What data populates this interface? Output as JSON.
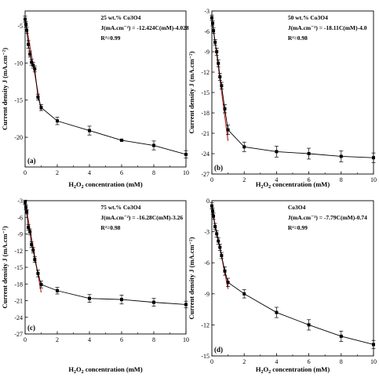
{
  "chart_data": [
    {
      "type": "scatter",
      "panel": "(a)",
      "ylabel": "Current density J (mA.cm⁻²)",
      "xlabel_parts": [
        "H",
        "2",
        "O",
        "2",
        " concentration (mM)"
      ],
      "xlim": [
        0,
        10
      ],
      "ylim": [
        -24,
        -3
      ],
      "xticks": [
        0,
        2,
        4,
        6,
        8,
        10
      ],
      "yticks": [
        -5,
        -10,
        -15,
        -20
      ],
      "annotations": [
        "25 wt.% Co3O4",
        "J(mA.cm⁻²) = -12.424C(mM)-4.028",
        "R²=0.99"
      ],
      "x": [
        0,
        0.05,
        0.1,
        0.2,
        0.3,
        0.4,
        0.5,
        0.6,
        0.8,
        1,
        2,
        4,
        6,
        8,
        10
      ],
      "y": [
        -4.1,
        -4.8,
        -5.6,
        -7.5,
        -8.8,
        -9.9,
        -10.3,
        -10.8,
        -14.6,
        -16,
        -17.8,
        -19.1,
        -20.4,
        -21.1,
        -22.3
      ],
      "yerr": [
        0.4,
        0.4,
        0.4,
        0.5,
        0.4,
        0.4,
        0.4,
        0.4,
        0.4,
        0.4,
        0.5,
        0.6,
        0.1,
        0.6,
        0.5
      ],
      "fit": {
        "slope": -12.424,
        "intercept": -4.028,
        "x_range": [
          0,
          1
        ]
      }
    },
    {
      "type": "scatter",
      "panel": "(b)",
      "ylabel": "Current density J (mA.cm⁻²)",
      "xlabel_parts": [
        "H",
        "2",
        "O",
        "2",
        " concentration (mM)"
      ],
      "xlim": [
        0,
        10
      ],
      "ylim": [
        -27,
        -3
      ],
      "xticks": [
        0,
        2,
        4,
        6,
        8,
        10
      ],
      "yticks": [
        -3,
        -6,
        -9,
        -12,
        -15,
        -18,
        -21,
        -24,
        -27
      ],
      "annotations": [
        "50 wt.% Co3O4",
        "J(mA.cm⁻²) = -18.11C(mM)-4.0",
        "R²=0.98"
      ],
      "x": [
        0,
        0.05,
        0.1,
        0.2,
        0.3,
        0.4,
        0.5,
        0.6,
        0.8,
        1,
        2,
        4,
        6,
        8,
        10
      ],
      "y": [
        -4,
        -4.8,
        -5.9,
        -7.6,
        -9.0,
        -10.7,
        -12.7,
        -14.0,
        -17.4,
        -20.5,
        -23.0,
        -23.7,
        -24.0,
        -24.4,
        -24.6
      ],
      "yerr": [
        0.4,
        0.4,
        0.4,
        0.4,
        0.5,
        0.5,
        0.5,
        0.5,
        0.6,
        0.7,
        0.7,
        0.8,
        0.8,
        0.8,
        0.7
      ],
      "fit": {
        "slope": -18.11,
        "intercept": -4.0,
        "x_range": [
          0,
          1
        ]
      }
    },
    {
      "type": "scatter",
      "panel": "(c)",
      "ylabel": "Current density J (mA.cm⁻²)",
      "xlabel_parts": [
        "H",
        "2",
        "O",
        "2",
        " concentration (mM)"
      ],
      "xlim": [
        0,
        10
      ],
      "ylim": [
        -27,
        -3
      ],
      "xticks": [
        0,
        2,
        4,
        6,
        8,
        10
      ],
      "yticks": [
        -3,
        -6,
        -9,
        -12,
        -15,
        -18,
        -21,
        -24,
        -27
      ],
      "annotations": [
        "75 wt.% Co3O4",
        "J(mA.cm⁻²) = -16.28C(mM)-3.26",
        "R²=0.98"
      ],
      "x": [
        0,
        0.05,
        0.1,
        0.2,
        0.3,
        0.4,
        0.5,
        0.6,
        0.8,
        1,
        2,
        4,
        6,
        8,
        10
      ],
      "y": [
        -3.3,
        -4.2,
        -5.0,
        -7.8,
        -8.6,
        -10.9,
        -11.9,
        -13.6,
        -16.1,
        -18.1,
        -19.2,
        -20.6,
        -20.8,
        -21.3,
        -21.7
      ],
      "yerr": [
        0.4,
        0.4,
        0.4,
        0.5,
        0.5,
        0.5,
        0.5,
        0.5,
        0.6,
        0.6,
        0.6,
        0.7,
        0.8,
        0.7,
        0.6
      ],
      "fit": {
        "slope": -16.28,
        "intercept": -3.26,
        "x_range": [
          0,
          1
        ]
      }
    },
    {
      "type": "scatter",
      "panel": "(d)",
      "ylabel": "Current density J (mA.cm⁻²)",
      "xlabel_parts": [
        "H",
        "2",
        "O",
        "2",
        " concentration (mM)"
      ],
      "xlim": [
        0,
        10
      ],
      "ylim": [
        -15,
        0
      ],
      "xticks": [
        0,
        2,
        4,
        6,
        8,
        10
      ],
      "yticks": [
        0,
        -3,
        -6,
        -9,
        -12,
        -15
      ],
      "annotations": [
        "Co3O4",
        "J(mA.cm⁻²) = -7.79C(mM)-0.74",
        "R²=0.99"
      ],
      "x": [
        0,
        0.05,
        0.1,
        0.2,
        0.3,
        0.4,
        0.5,
        0.6,
        0.8,
        1,
        2,
        4,
        6,
        8,
        10
      ],
      "y": [
        -0.5,
        -1.0,
        -1.5,
        -2.5,
        -3.2,
        -3.9,
        -4.5,
        -5.3,
        -6.8,
        -7.9,
        -9.0,
        -10.8,
        -12.0,
        -13.1,
        -13.9
      ],
      "yerr": [
        0.3,
        0.3,
        0.3,
        0.3,
        0.3,
        0.3,
        0.3,
        0.3,
        0.4,
        0.4,
        0.4,
        0.5,
        0.5,
        0.5,
        0.4
      ],
      "fit": {
        "slope": -7.79,
        "intercept": -0.74,
        "x_range": [
          0,
          1
        ]
      }
    }
  ],
  "colors": {
    "data": "#000000",
    "fit": "#c0282a",
    "axis": "#000000"
  }
}
